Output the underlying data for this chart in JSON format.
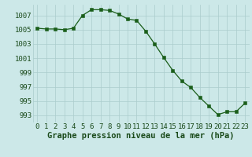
{
  "x": [
    0,
    1,
    2,
    3,
    4,
    5,
    6,
    7,
    8,
    9,
    10,
    11,
    12,
    13,
    14,
    15,
    16,
    17,
    18,
    19,
    20,
    21,
    22,
    23
  ],
  "y": [
    1005.2,
    1005.1,
    1005.1,
    1005.0,
    1005.2,
    1007.0,
    1007.8,
    1007.8,
    1007.7,
    1007.2,
    1006.5,
    1006.3,
    1004.8,
    1003.0,
    1001.1,
    999.3,
    997.8,
    996.9,
    995.5,
    994.3,
    993.1,
    993.5,
    993.5,
    994.7
  ],
  "line_color": "#1a5e1a",
  "marker_color": "#1a5e1a",
  "bg_color": "#cce8e8",
  "grid_color": "#aacccc",
  "xlabel": "Graphe pression niveau de la mer (hPa)",
  "ylim": [
    992.0,
    1008.5
  ],
  "yticks": [
    993,
    995,
    997,
    999,
    1001,
    1003,
    1005,
    1007
  ],
  "xticks": [
    0,
    1,
    2,
    3,
    4,
    5,
    6,
    7,
    8,
    9,
    10,
    11,
    12,
    13,
    14,
    15,
    16,
    17,
    18,
    19,
    20,
    21,
    22,
    23
  ],
  "xlabel_fontsize": 7.5,
  "tick_fontsize": 6.5,
  "ytick_color": "#1a4a1a",
  "xtick_color": "#1a4a1a",
  "xlabel_color": "#1a4a1a"
}
